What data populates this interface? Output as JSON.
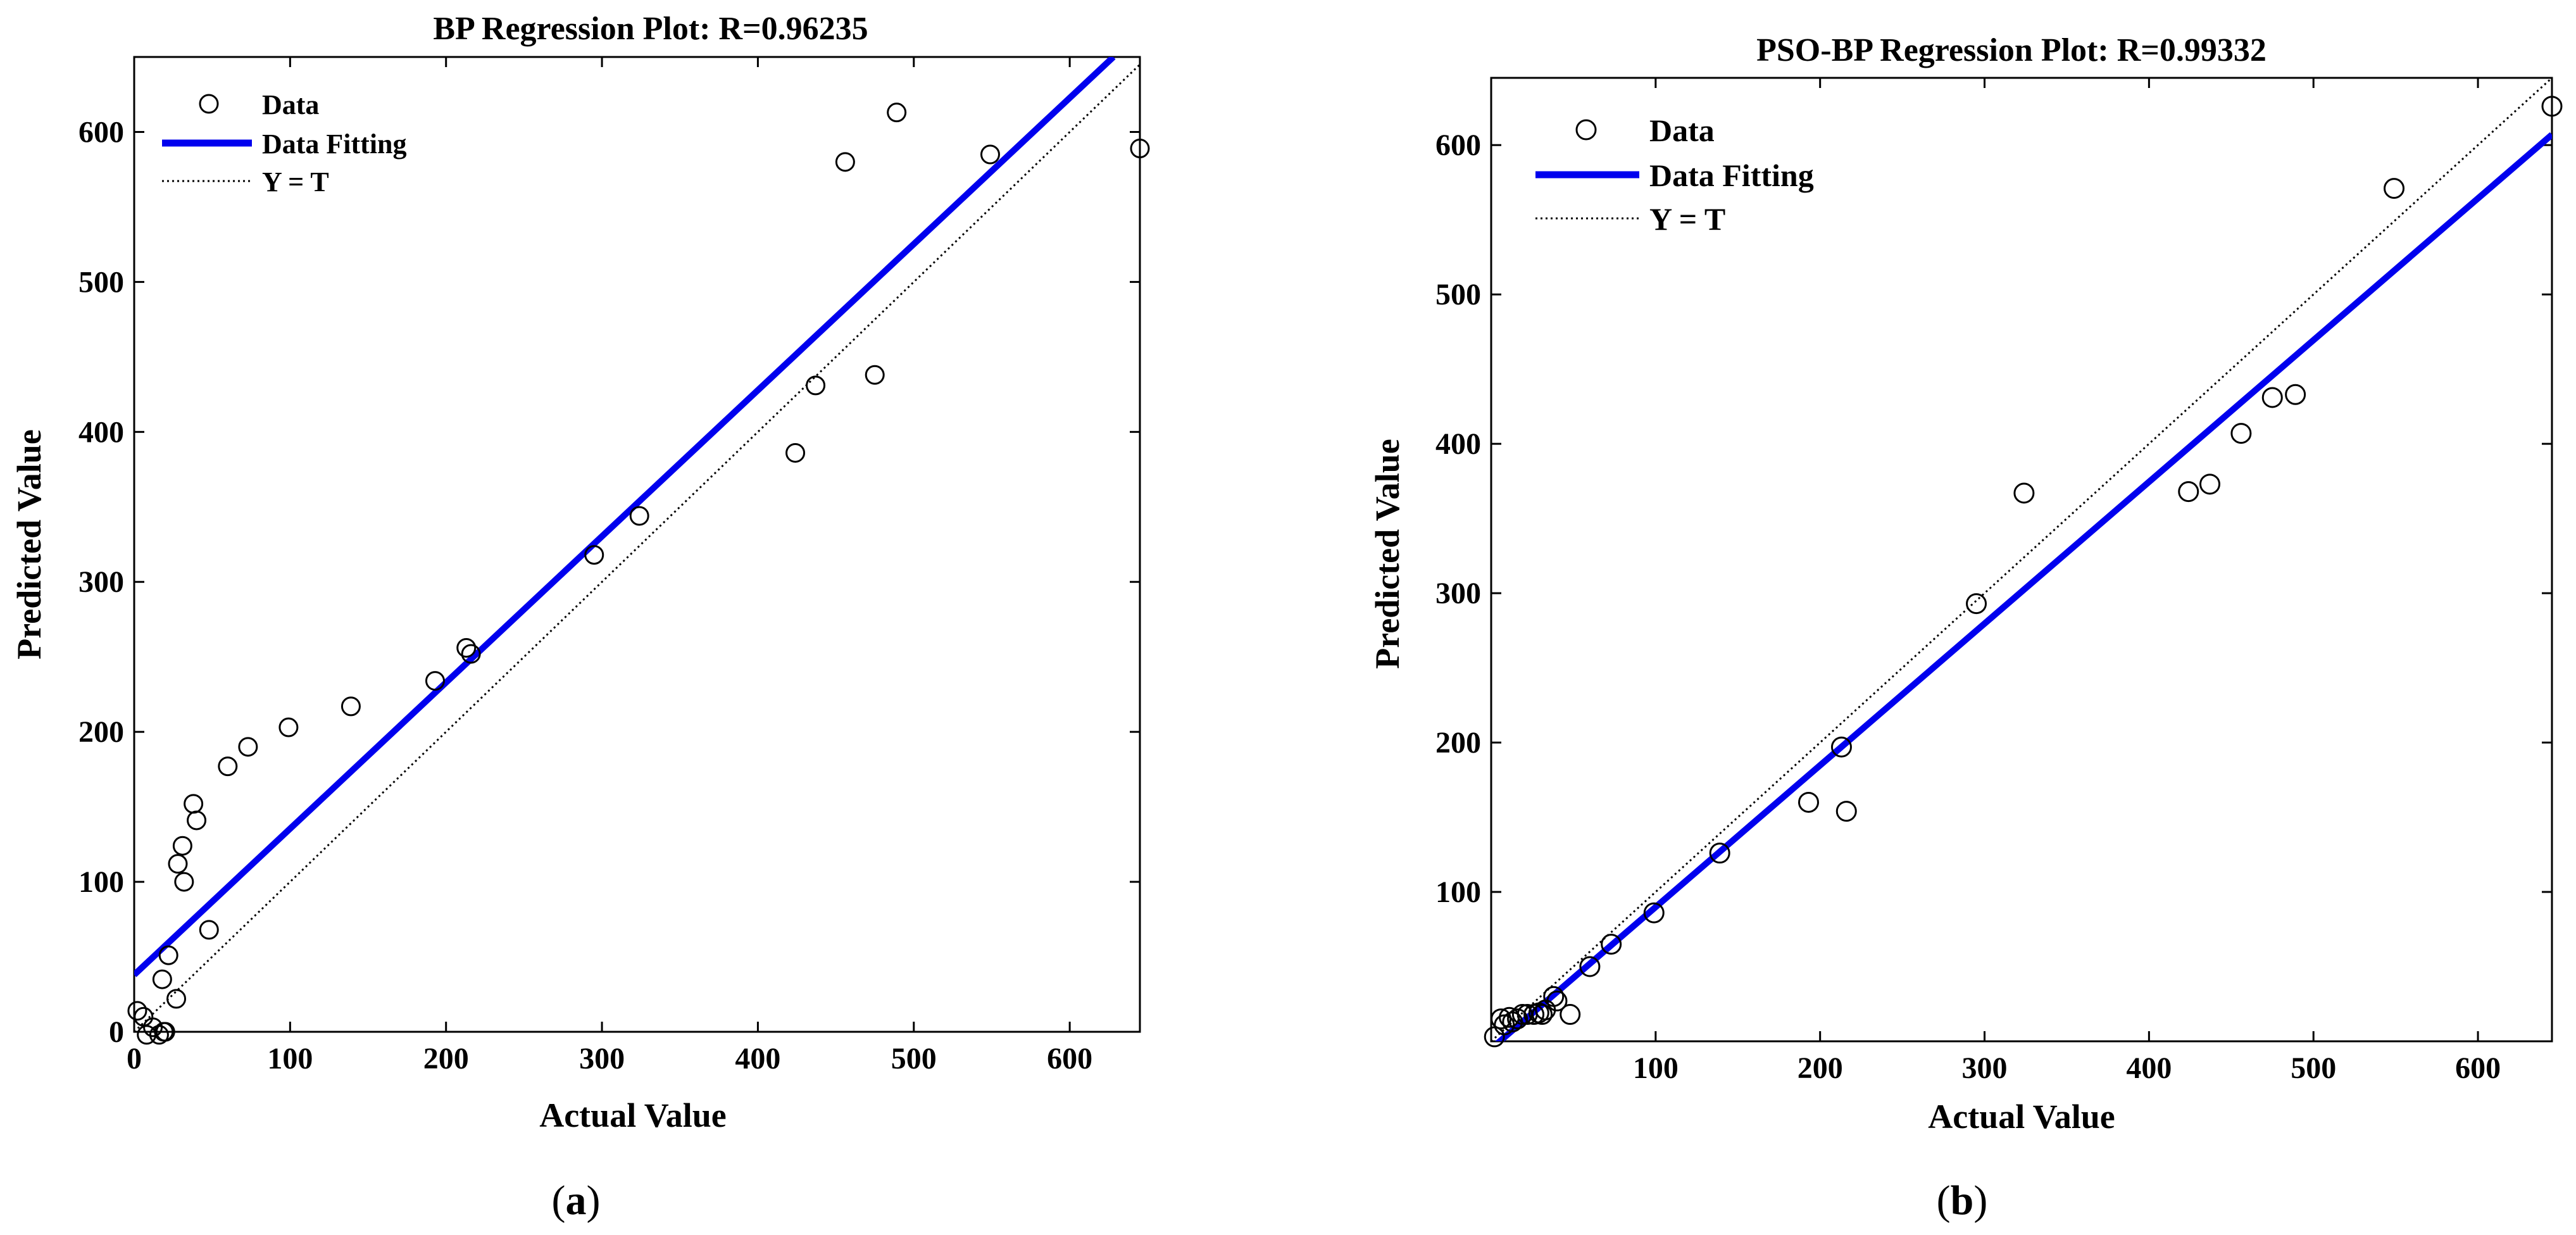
{
  "chart_data": [
    {
      "type": "scatter",
      "title": "BP Regression Plot: R=0.96235",
      "xlabel": "Actual Value",
      "ylabel": "Predicted Value",
      "xlim": [
        0,
        645
      ],
      "ylim": [
        0,
        650
      ],
      "xticks": [
        0,
        100,
        200,
        300,
        400,
        500,
        600
      ],
      "yticks": [
        0,
        100,
        200,
        300,
        400,
        500,
        600
      ],
      "grid": false,
      "legend_position": "top-left",
      "caption": {
        "open": "(",
        "letter": "a",
        "close": ")"
      },
      "legend": [
        "Data",
        "Data Fitting",
        "Y = T"
      ],
      "series": [
        {
          "name": "Data",
          "style": "circle",
          "color": "#000000",
          "points": [
            [
              2,
              14
            ],
            [
              6,
              10
            ],
            [
              8,
              -2
            ],
            [
              12,
              3
            ],
            [
              16,
              -2
            ],
            [
              19,
              0
            ],
            [
              20,
              0
            ],
            [
              18,
              35
            ],
            [
              22,
              51
            ],
            [
              27,
              22
            ],
            [
              28,
              112
            ],
            [
              31,
              124
            ],
            [
              32,
              100
            ],
            [
              38,
              152
            ],
            [
              40,
              141
            ],
            [
              48,
              68
            ],
            [
              60,
              177
            ],
            [
              73,
              190
            ],
            [
              99,
              203
            ],
            [
              139,
              217
            ],
            [
              193,
              234
            ],
            [
              213,
              256
            ],
            [
              216,
              252
            ],
            [
              295,
              318
            ],
            [
              324,
              344
            ],
            [
              424,
              386
            ],
            [
              437,
              431
            ],
            [
              456,
              580
            ],
            [
              475,
              438
            ],
            [
              489,
              613
            ],
            [
              549,
              585
            ],
            [
              645,
              589
            ]
          ]
        },
        {
          "name": "Data Fitting",
          "style": "line",
          "color": "#0000ee",
          "points": [
            [
              0,
              38
            ],
            [
              628,
              650
            ]
          ]
        },
        {
          "name": "Y = T",
          "style": "dotted",
          "color": "#000000",
          "points": [
            [
              0,
              0
            ],
            [
              645,
              645
            ]
          ]
        }
      ]
    },
    {
      "type": "scatter",
      "title": "PSO-BP Regression Plot: R=0.99332",
      "xlabel": "Actual Value",
      "ylabel": "Predicted Value",
      "xlim": [
        0,
        645
      ],
      "ylim": [
        0,
        645
      ],
      "xticks": [
        100,
        200,
        300,
        400,
        500,
        600
      ],
      "yticks": [
        100,
        200,
        300,
        400,
        500,
        600
      ],
      "grid": false,
      "legend_position": "top-left",
      "caption": {
        "open": "(",
        "letter": "b",
        "close": ")"
      },
      "legend": [
        "Data",
        "Data Fitting",
        "Y = T"
      ],
      "series": [
        {
          "name": "Data",
          "style": "circle",
          "color": "#000000",
          "points": [
            [
              2,
              3
            ],
            [
              6,
              15
            ],
            [
              8,
              11
            ],
            [
              11,
              16
            ],
            [
              13,
              13
            ],
            [
              16,
              15
            ],
            [
              19,
              18
            ],
            [
              22,
              18
            ],
            [
              26,
              18
            ],
            [
              29,
              19
            ],
            [
              31,
              18
            ],
            [
              33,
              21
            ],
            [
              38,
              30
            ],
            [
              40,
              27
            ],
            [
              48,
              18
            ],
            [
              60,
              50
            ],
            [
              73,
              65
            ],
            [
              99,
              86
            ],
            [
              139,
              126
            ],
            [
              193,
              160
            ],
            [
              213,
              197
            ],
            [
              216,
              154
            ],
            [
              295,
              293
            ],
            [
              324,
              367
            ],
            [
              424,
              368
            ],
            [
              437,
              373
            ],
            [
              456,
              407
            ],
            [
              475,
              431
            ],
            [
              489,
              433
            ],
            [
              549,
              571
            ],
            [
              645,
              626
            ]
          ]
        },
        {
          "name": "Data Fitting",
          "style": "line",
          "color": "#0000ee",
          "points": [
            [
              0,
              -5
            ],
            [
              645,
              607
            ]
          ]
        },
        {
          "name": "Y = T",
          "style": "dotted",
          "color": "#000000",
          "points": [
            [
              0,
              0
            ],
            [
              645,
              645
            ]
          ]
        }
      ]
    }
  ]
}
